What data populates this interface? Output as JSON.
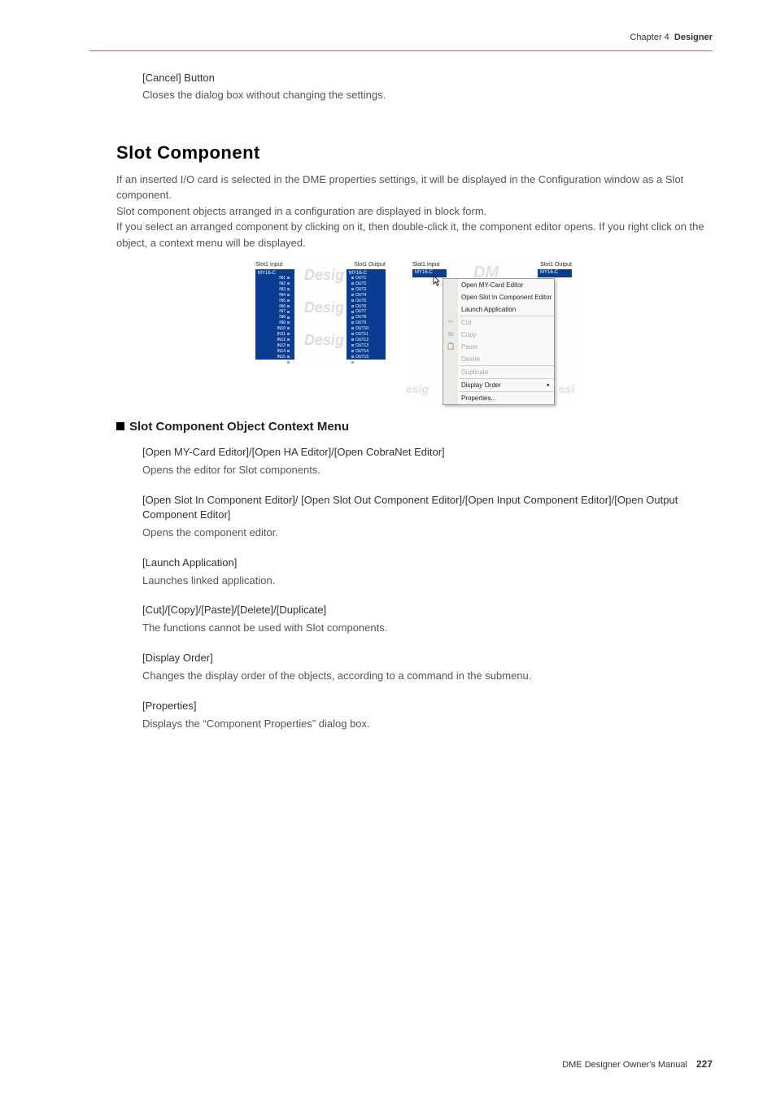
{
  "header": {
    "chapter_prefix": "Chapter 4",
    "chapter_name": "Designer"
  },
  "cancel": {
    "title": "[Cancel] Button",
    "desc": "Closes the dialog box without changing the settings."
  },
  "slot_heading": "Slot Component",
  "slot_body": "If an inserted I/O card is selected in the DME properties settings, it will be displayed in the Configuration window as a Slot component.\nSlot component objects arranged in a configuration are displayed in block form.\nIf you select an arranged component by clicking on it, then double-click it, the component editor opens. If you right click on the object, a context menu will be displayed.",
  "fig_left": {
    "slot_in_label": "Slot1 Input",
    "slot_out_label": "Slot1 Output",
    "card_name": "MY16-C",
    "ins": [
      "IN1",
      "IN2",
      "IN3",
      "IN4",
      "IN5",
      "IN6",
      "IN7",
      "IN8",
      "IN9",
      "IN10",
      "IN11",
      "IN12",
      "IN13",
      "IN14",
      "IN15",
      "IN16"
    ],
    "outs": [
      "OUT1",
      "OUT2",
      "OUT3",
      "OUT4",
      "OUT5",
      "OUT6",
      "OUT7",
      "OUT8",
      "OUT9",
      "OUT10",
      "OUT11",
      "OUT12",
      "OUT13",
      "OUT14",
      "OUT15",
      "OUT16"
    ]
  },
  "fig_right": {
    "slot_in_label": "Slot1 Input",
    "slot_out_label": "Slot1 Output",
    "card_name_a": "MY16-C",
    "card_name_b": "MY16-C",
    "menu": [
      {
        "label": "Open MY-Card Editor",
        "disabled": false,
        "icon": ""
      },
      {
        "label": "Open Slot In Component Editor",
        "disabled": false,
        "icon": ""
      },
      {
        "label": "Launch Application",
        "disabled": false,
        "icon": ""
      },
      {
        "sep": true
      },
      {
        "label": "Cut",
        "disabled": true,
        "icon": "✂"
      },
      {
        "label": "Copy",
        "disabled": true,
        "icon": "⧉"
      },
      {
        "label": "Paste",
        "disabled": true,
        "icon": "📋"
      },
      {
        "label": "Delete",
        "disabled": true,
        "icon": ""
      },
      {
        "sep": true
      },
      {
        "label": "Duplicate",
        "disabled": true,
        "icon": ""
      },
      {
        "sep": true
      },
      {
        "label": "Display Order",
        "disabled": false,
        "icon": "",
        "arrow": true
      },
      {
        "sep": true
      },
      {
        "label": "Properties...",
        "disabled": false,
        "icon": ""
      }
    ]
  },
  "sub_heading": "Slot Component Object Context Menu",
  "items": [
    {
      "title": "[Open MY-Card Editor]/[Open HA Editor]/[Open CobraNet Editor]",
      "desc": "Opens the editor for Slot components."
    },
    {
      "title": "[Open Slot In Component Editor]/ [Open Slot Out Component Editor]/[Open Input Component Editor]/[Open Output Component Editor]",
      "desc": "Opens the component editor."
    },
    {
      "title": "[Launch Application]",
      "desc": "Launches linked application."
    },
    {
      "title": "[Cut]/[Copy]/[Paste]/[Delete]/[Duplicate]",
      "desc": "The functions cannot be used with Slot components."
    },
    {
      "title": "[Display Order]",
      "desc": "Changes the display order of the objects, according to a command in the submenu."
    },
    {
      "title": "[Properties]",
      "desc": "Displays the “Component Properties” dialog box."
    }
  ],
  "footer": {
    "text": "DME Designer Owner's Manual",
    "page": "227"
  }
}
